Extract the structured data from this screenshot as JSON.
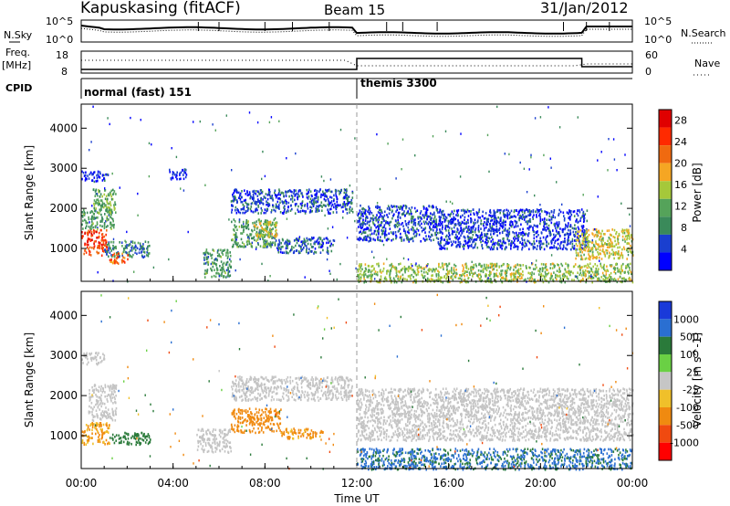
{
  "header": {
    "station": "Kapuskasing (fitACF)",
    "beam": "Beam 15",
    "date": "31/Jan/2012"
  },
  "labels": {
    "nsky": "N.Sky",
    "nsearch": "N.Search",
    "freq_line1": "Freq.",
    "freq_line2": "[MHz]",
    "nave": "Nave",
    "cpid": "CPID",
    "noise_tick_top": "10^5",
    "noise_tick_bottom": "10^0",
    "freq_tick_top": "18",
    "freq_tick_bottom": "8",
    "nave_tick_top": "60",
    "nave_tick_bottom": "0",
    "cpid_mode1": "normal (fast) 151",
    "cpid_mode2": "themis 3300"
  },
  "colors": {
    "power_scale": [
      "#0000ff",
      "#1a3fcf",
      "#3a8a5a",
      "#55a35a",
      "#a5c83a",
      "#f5a623",
      "#f06a10",
      "#ff2a00",
      "#e00000"
    ],
    "velocity_scale": [
      "#1a3ad9",
      "#2a6fd2",
      "#2a7a3a",
      "#6ad044",
      "#c6c6c6",
      "#f0c02a",
      "#f08a10",
      "#f04a10",
      "#ff0000"
    ],
    "ground_scatter": "#c4c4c4"
  },
  "chart_data": [
    {
      "type": "heatmap",
      "name": "power",
      "xlabel": "Time UT",
      "ylabel": "Slant Range [km]",
      "x_ticks": [
        "00:00",
        "04:00",
        "08:00",
        "12:00",
        "16:00",
        "20:00",
        "00:00"
      ],
      "x_range_hours": [
        0,
        24
      ],
      "y_ticks": [
        1000,
        2000,
        3000,
        4000
      ],
      "y_range_km": [
        180,
        4600
      ],
      "colorbar_label": "Power [dB]",
      "colorbar_ticks": [
        4,
        8,
        12,
        16,
        20,
        24,
        28
      ],
      "colorbar_range": [
        0,
        30
      ],
      "regions": [
        {
          "t0": 0.0,
          "t1": 1.1,
          "r0": 850,
          "r1": 1500,
          "level": 24
        },
        {
          "t0": 0.0,
          "t1": 1.4,
          "r0": 1500,
          "r1": 2000,
          "level": 10
        },
        {
          "t0": 0.5,
          "t1": 1.5,
          "r0": 1900,
          "r1": 2500,
          "level": 12
        },
        {
          "t0": 1.0,
          "t1": 3.0,
          "r0": 800,
          "r1": 1200,
          "level": 8
        },
        {
          "t0": 1.2,
          "t1": 2.0,
          "r0": 650,
          "r1": 900,
          "level": 22
        },
        {
          "t0": 0.0,
          "t1": 1.2,
          "r0": 2700,
          "r1": 2950,
          "level": 3
        },
        {
          "t0": 5.3,
          "t1": 6.5,
          "r0": 300,
          "r1": 1000,
          "level": 10
        },
        {
          "t0": 6.5,
          "t1": 8.5,
          "r0": 1050,
          "r1": 1750,
          "level": 10
        },
        {
          "t0": 7.5,
          "t1": 8.5,
          "r0": 1300,
          "r1": 1700,
          "level": 16
        },
        {
          "t0": 8.5,
          "t1": 11.0,
          "r0": 900,
          "r1": 1300,
          "level": 6
        },
        {
          "t0": 6.5,
          "t1": 11.8,
          "r0": 1900,
          "r1": 2500,
          "level": 5
        },
        {
          "t0": 3.8,
          "t1": 4.6,
          "r0": 2750,
          "r1": 3000,
          "level": 3
        },
        {
          "t0": 12.0,
          "t1": 15.5,
          "r0": 1200,
          "r1": 2100,
          "level": 5
        },
        {
          "t0": 15.5,
          "t1": 22.0,
          "r0": 1000,
          "r1": 2000,
          "level": 4
        },
        {
          "t0": 21.5,
          "t1": 24.0,
          "r0": 750,
          "r1": 1500,
          "level": 16
        },
        {
          "t0": 12.0,
          "t1": 24.0,
          "r0": 180,
          "r1": 650,
          "level": 14
        }
      ]
    },
    {
      "type": "heatmap",
      "name": "velocity",
      "xlabel": "Time UT",
      "ylabel": "Slant Range [km]",
      "x_ticks": [
        "00:00",
        "04:00",
        "08:00",
        "12:00",
        "16:00",
        "20:00",
        "00:00"
      ],
      "x_range_hours": [
        0,
        24
      ],
      "y_ticks": [
        1000,
        2000,
        3000,
        4000
      ],
      "y_range_km": [
        180,
        4600
      ],
      "colorbar_label": "Velocity [m s^-1]",
      "colorbar_ticks": [
        1000,
        500,
        100,
        25,
        -25,
        -100,
        -500,
        -1000
      ],
      "regions": [
        {
          "t0": 0.0,
          "t1": 1.2,
          "r0": 800,
          "r1": 1350,
          "level": -100,
          "kind": "velocity"
        },
        {
          "t0": 0.3,
          "t1": 1.5,
          "r0": 1400,
          "r1": 2300,
          "level": 0,
          "kind": "ground"
        },
        {
          "t0": 0.0,
          "t1": 1.0,
          "r0": 2800,
          "r1": 3100,
          "level": 0,
          "kind": "ground"
        },
        {
          "t0": 1.2,
          "t1": 3.0,
          "r0": 800,
          "r1": 1100,
          "level": 300,
          "kind": "velocity"
        },
        {
          "t0": 5.0,
          "t1": 6.5,
          "r0": 600,
          "r1": 1200,
          "level": 0,
          "kind": "ground"
        },
        {
          "t0": 6.5,
          "t1": 8.7,
          "r0": 1100,
          "r1": 1700,
          "level": -200,
          "kind": "velocity"
        },
        {
          "t0": 8.7,
          "t1": 10.5,
          "r0": 950,
          "r1": 1200,
          "level": -150,
          "kind": "velocity"
        },
        {
          "t0": 6.5,
          "t1": 11.8,
          "r0": 1900,
          "r1": 2500,
          "level": 0,
          "kind": "ground"
        },
        {
          "t0": 12.0,
          "t1": 24.0,
          "r0": 900,
          "r1": 2200,
          "level": 0,
          "kind": "ground"
        },
        {
          "t0": 12.0,
          "t1": 24.0,
          "r0": 180,
          "r1": 700,
          "level": 600,
          "kind": "velocity"
        }
      ]
    }
  ]
}
